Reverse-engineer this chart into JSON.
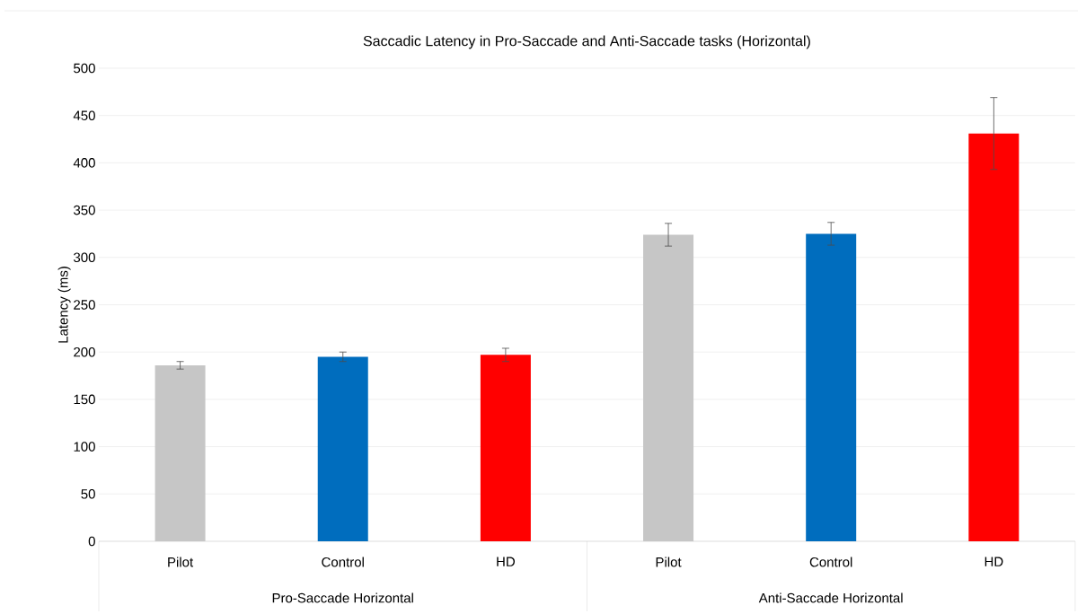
{
  "chart_data": {
    "type": "bar",
    "title": "Saccadic Latency in Pro-Saccade and Anti-Saccade tasks (Horizontal)",
    "ylabel": "Latency (ms)",
    "categories": [
      "Pilot",
      "Control",
      "HD",
      "Pilot",
      "Control",
      "HD"
    ],
    "values": [
      186,
      195,
      197,
      324,
      325,
      431
    ],
    "errors": [
      4,
      5,
      7,
      12,
      12,
      38
    ],
    "colors": [
      "#c6c6c6",
      "#006dbe",
      "#ff0000",
      "#c6c6c6",
      "#006dbe",
      "#ff0000"
    ],
    "ylim": [
      0,
      500
    ],
    "yticks": [
      0,
      50,
      100,
      150,
      200,
      250,
      300,
      350,
      400,
      450,
      500
    ],
    "grid": "y",
    "annotations": [
      "Pro-Saccade Horizontal",
      "Anti-Saccade Horizontal"
    ]
  }
}
